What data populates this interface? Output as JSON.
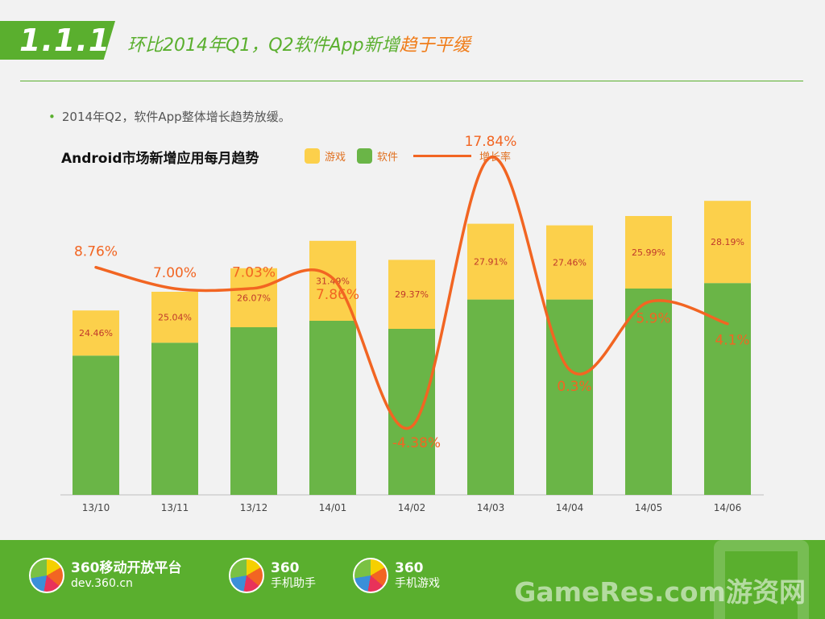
{
  "header": {
    "badge": "1.1.1",
    "title_part1": "环比2014年Q1，Q2软件App新增",
    "title_part2": "趋于平缓"
  },
  "bullet": "2014年Q2，软件App整体增长趋势放缓。",
  "chart_data": {
    "type": "bar",
    "title": "Android市场新增应用每月趋势",
    "categories": [
      "13/10",
      "13/11",
      "13/12",
      "14/01",
      "14/02",
      "14/03",
      "14/04",
      "14/05",
      "14/06"
    ],
    "legend": [
      "游戏",
      "软件",
      "增长率"
    ],
    "series": [
      {
        "name": "软件",
        "stack": "total",
        "color": "#6ab547",
        "values": [
          43.2,
          47.2,
          52.0,
          54.0,
          51.5,
          60.6,
          60.6,
          64.0,
          65.7
        ]
      },
      {
        "name": "游戏",
        "stack": "total",
        "color": "#fcd04b",
        "labels": [
          "24.46%",
          "25.04%",
          "26.07%",
          "31.49%",
          "29.37%",
          "27.91%",
          "27.46%",
          "25.99%",
          "28.19%"
        ],
        "values": [
          14.0,
          15.8,
          18.3,
          24.8,
          21.4,
          23.5,
          23.0,
          22.5,
          25.5
        ]
      },
      {
        "name": "增长率",
        "type": "line",
        "color": "#f26522",
        "labels": [
          "8.76%",
          "7.00%",
          "7.03%",
          "7.86%",
          "-4.38%",
          "17.84%",
          "0.3%",
          "5.9%",
          "4.1%"
        ],
        "values": [
          8.76,
          7.0,
          7.03,
          7.86,
          -4.38,
          17.84,
          0.3,
          5.9,
          4.1
        ]
      }
    ]
  },
  "footer": {
    "logos": [
      {
        "name": "360移动开放平台",
        "sub": "dev.360.cn"
      },
      {
        "name": "360",
        "sub": "手机助手"
      },
      {
        "name": "360",
        "sub": "手机游戏"
      }
    ],
    "watermark": "GameRes.com游资网"
  }
}
